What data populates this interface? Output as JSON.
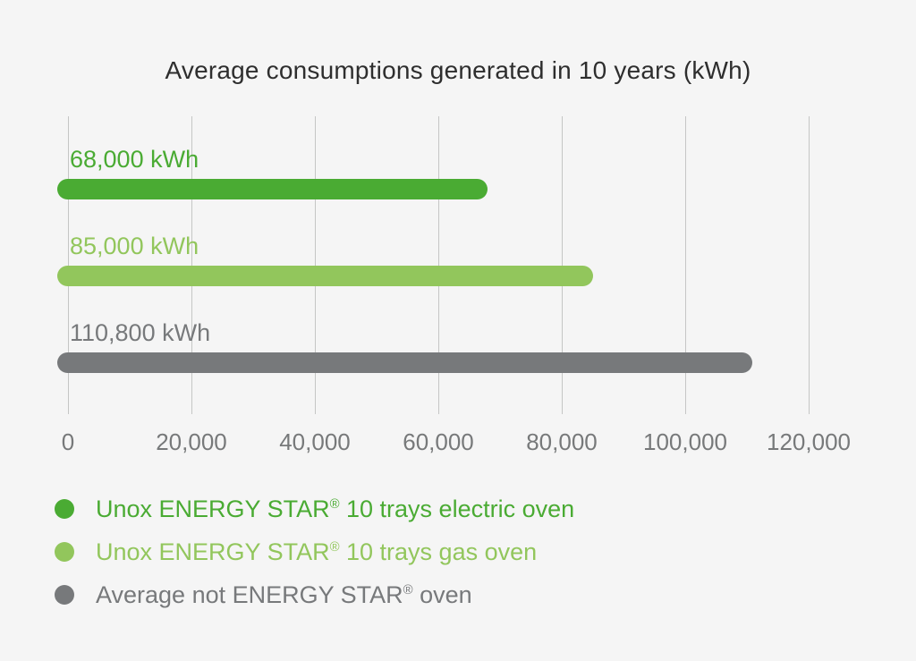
{
  "title": "Average consumptions generated in 10 years (kWh)",
  "chart_data": {
    "type": "bar",
    "orientation": "horizontal",
    "title": "Average consumptions generated in 10 years (kWh)",
    "series": [
      {
        "name": "Unox ENERGY STAR® 10 trays electric oven",
        "value": 68000,
        "value_label": "68,000 kWh",
        "color": "#4aab33"
      },
      {
        "name": "Unox ENERGY STAR® 10 trays gas oven",
        "value": 85000,
        "value_label": "85,000 kWh",
        "color": "#92c65c"
      },
      {
        "name": "Average not ENERGY STAR® oven",
        "value": 110800,
        "value_label": "110,800 kWh",
        "color": "#77797b"
      }
    ],
    "xlim": [
      0,
      120000
    ],
    "x_ticks": [
      0,
      20000,
      40000,
      60000,
      80000,
      100000,
      120000
    ],
    "x_tick_labels": [
      "0",
      "20,000",
      "40,000",
      "60,000",
      "80,000",
      "100,000",
      "120,000"
    ],
    "grid": "vertical-gridlines",
    "legend_position": "bottom-left",
    "background_color": "#f5f5f5",
    "gridline_color": "#c5c6c5",
    "axis_text_color": "#77797a",
    "title_color": "#2e2e2e"
  }
}
